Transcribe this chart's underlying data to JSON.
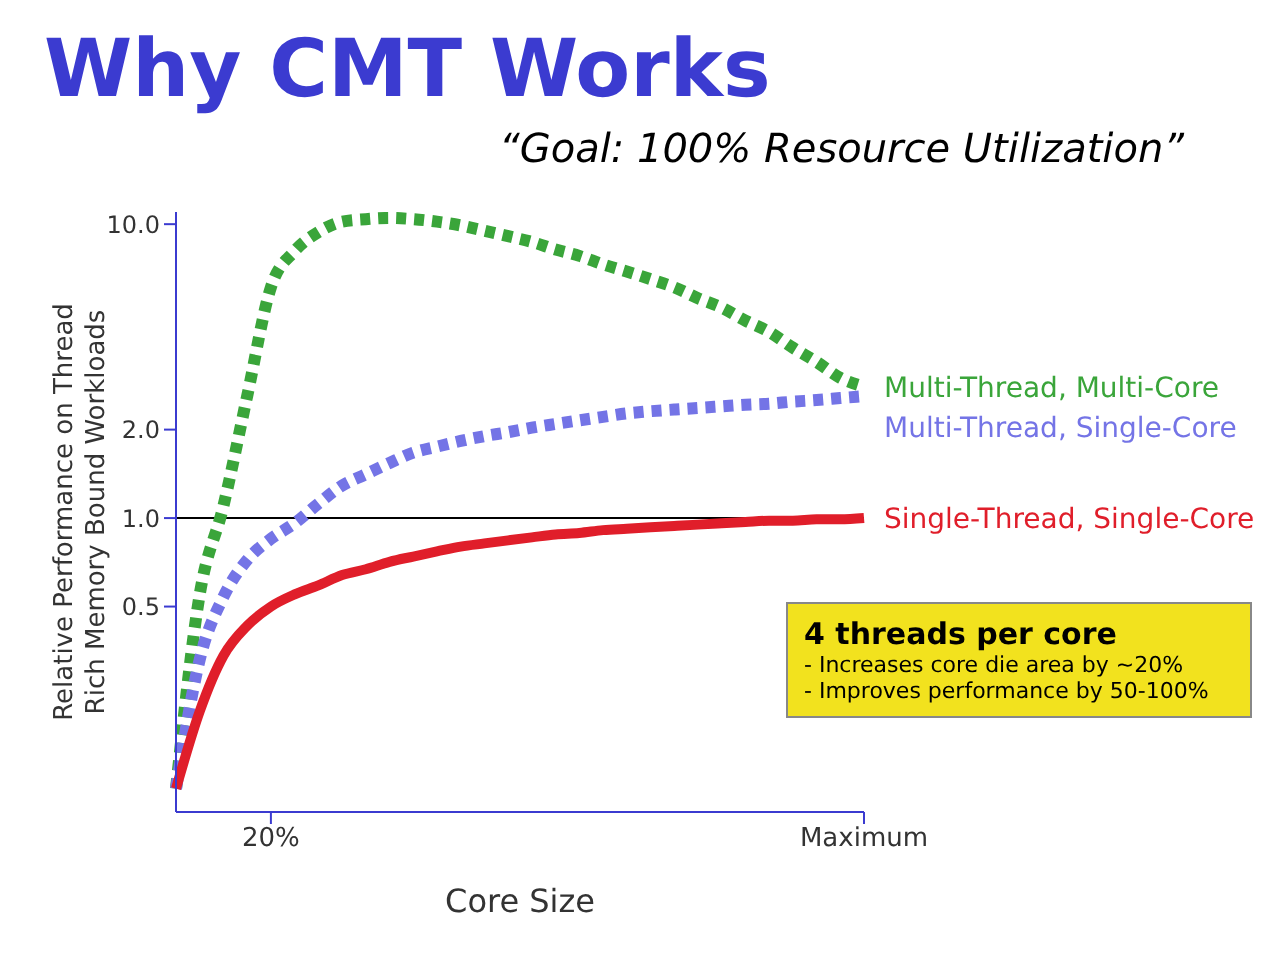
{
  "chart_data": {
    "type": "line",
    "title": "Why CMT Works",
    "subtitle": "“Goal: 100% Resource Utilization”",
    "xlabel": "Core Size",
    "ylabel": "Relative Performance on Thread Rich Memory Bound Workloads",
    "categories": [
      null,
      null,
      null,
      null,
      "20%",
      null,
      null,
      null,
      null,
      null,
      null,
      null,
      null,
      null,
      null,
      null,
      null,
      null,
      null,
      null,
      null,
      null,
      null,
      null,
      null,
      null,
      null,
      null,
      null,
      "Maximum"
    ],
    "log": "y",
    "ylim": [
      0.1,
      11
    ],
    "yticks": [
      {
        "value": 0.5,
        "label": "0.5"
      },
      {
        "value": 1,
        "label": "1.0"
      },
      {
        "value": 2,
        "label": "2.0"
      },
      {
        "value": 10,
        "label": "10.0"
      }
    ],
    "marker": "none",
    "series": [
      {
        "name": "Multi-Thread, Multi-Core",
        "color": "#3aa53a",
        "line_style": "dotted",
        "values": [
          0.12,
          0.55,
          1.1,
          2.6,
          6.1,
          8.1,
          9.4,
          10.2,
          10.4,
          10.5,
          10.4,
          10.2,
          9.9,
          9.5,
          9.1,
          8.7,
          8.2,
          7.8,
          7.3,
          6.9,
          6.5,
          6.1,
          5.6,
          5.2,
          4.7,
          4.3,
          3.8,
          3.4,
          3.0,
          2.8
        ]
      },
      {
        "name": "Multi-Thread, Single-Core",
        "color": "#7474e6",
        "line_style": "dotted",
        "values": [
          0.12,
          0.33,
          0.54,
          0.72,
          0.85,
          0.96,
          1.12,
          1.29,
          1.41,
          1.54,
          1.67,
          1.75,
          1.83,
          1.9,
          1.96,
          2.03,
          2.09,
          2.15,
          2.21,
          2.27,
          2.31,
          2.34,
          2.37,
          2.4,
          2.43,
          2.45,
          2.49,
          2.52,
          2.56,
          2.6
        ]
      },
      {
        "name": "Single-Thread, Single-Core",
        "color": "#e01e2a",
        "line_style": "solid",
        "values": [
          0.12,
          0.22,
          0.34,
          0.43,
          0.5,
          0.55,
          0.59,
          0.64,
          0.67,
          0.71,
          0.74,
          0.77,
          0.8,
          0.82,
          0.84,
          0.86,
          0.88,
          0.89,
          0.91,
          0.92,
          0.93,
          0.94,
          0.95,
          0.96,
          0.97,
          0.98,
          0.98,
          0.99,
          0.99,
          1.0
        ]
      }
    ],
    "ref_lines": [
      {
        "axis": "y",
        "value": 1,
        "color": "#000000"
      }
    ],
    "annotations": [
      "4 threads per core",
      "- Increases core die area by ~20%",
      "- Improves performance by 50-100%"
    ]
  }
}
